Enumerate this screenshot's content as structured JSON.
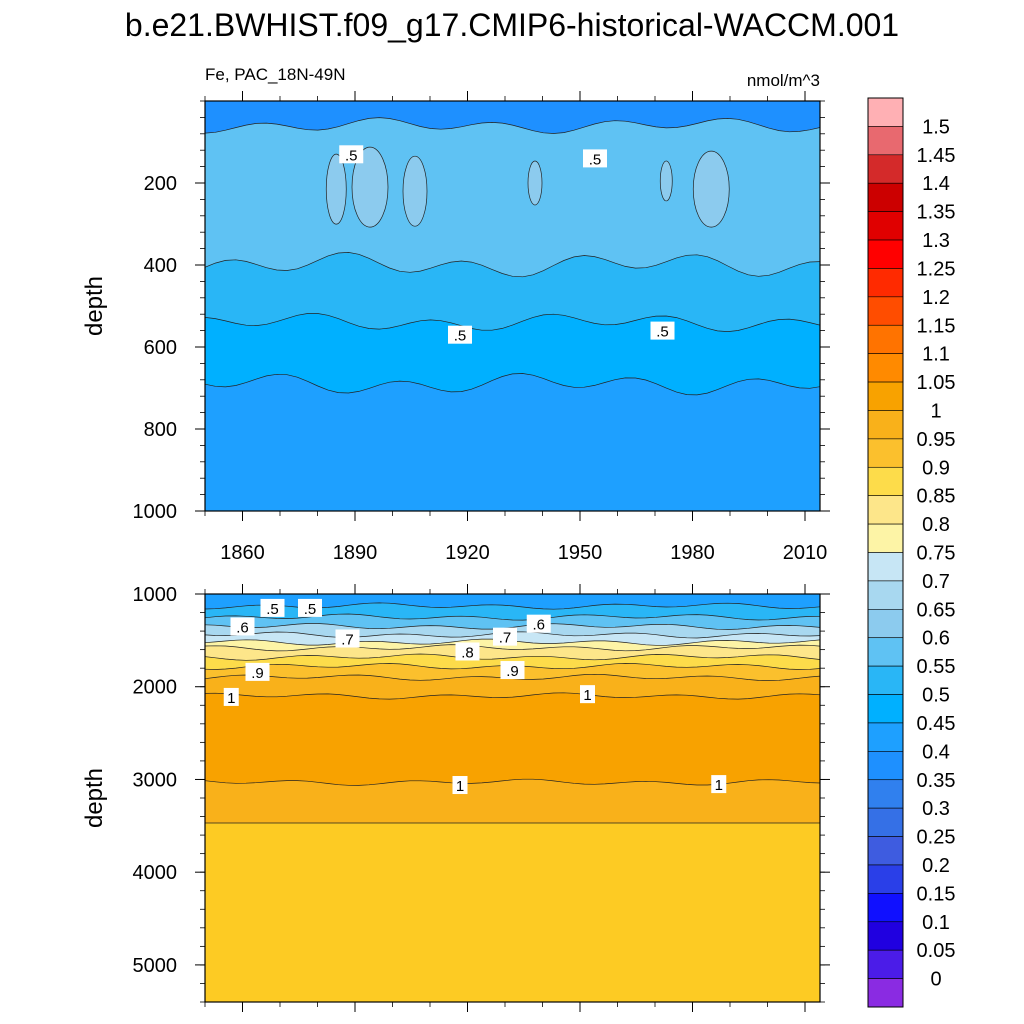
{
  "title": "b.e21.BWHIST.f09_g17.CMIP6-historical-WACCM.001",
  "subtitle_left": "Fe, PAC_18N-49N",
  "units": "nmol/m^3",
  "chart_data": [
    {
      "type": "heatmap",
      "panel": "upper",
      "ylabel": "depth",
      "y_reversed": true,
      "ylim": [
        0,
        1000
      ],
      "yticks": [
        "200",
        "400",
        "600",
        "800",
        "1000"
      ],
      "ytick_values": [
        200,
        400,
        600,
        800,
        1000
      ],
      "xlim": [
        1850,
        2014
      ],
      "xticks": [
        "1860",
        "1890",
        "1920",
        "1950",
        "1980",
        "2010"
      ],
      "xtick_values": [
        1860,
        1890,
        1920,
        1950,
        1980,
        2010
      ],
      "bands": [
        {
          "from": 0,
          "to": 60,
          "color": "#1e90ff"
        },
        {
          "from": 60,
          "to": 400,
          "color": "#5fc2f3"
        },
        {
          "from": 400,
          "to": 540,
          "color": "#29b6f6"
        },
        {
          "from": 540,
          "to": 690,
          "color": "#00b0ff"
        },
        {
          "from": 690,
          "to": 1000,
          "color": "#1ea0ff"
        }
      ],
      "contour_labels": [
        {
          "text": ".5",
          "year": 1889,
          "depth": 130
        },
        {
          "text": ".5",
          "year": 1954,
          "depth": 140
        },
        {
          "text": ".5",
          "year": 1918,
          "depth": 570
        },
        {
          "text": ".5",
          "year": 1972,
          "depth": 560
        }
      ]
    },
    {
      "type": "heatmap",
      "panel": "lower",
      "ylabel": "depth",
      "y_reversed": true,
      "ylim": [
        1000,
        5400
      ],
      "yticks": [
        "1000",
        "2000",
        "3000",
        "4000",
        "5000"
      ],
      "ytick_values": [
        1000,
        2000,
        3000,
        4000,
        5000
      ],
      "xlim": [
        1850,
        2014
      ],
      "bands": [
        {
          "from": 1000,
          "to": 1130,
          "color": "#1ea0ff"
        },
        {
          "from": 1130,
          "to": 1250,
          "color": "#29b6f6"
        },
        {
          "from": 1250,
          "to": 1350,
          "color": "#5fc2f3"
        },
        {
          "from": 1350,
          "to": 1440,
          "color": "#a8d8f0"
        },
        {
          "from": 1440,
          "to": 1520,
          "color": "#c7e6f5"
        },
        {
          "from": 1520,
          "to": 1580,
          "color": "#fdf4a6"
        },
        {
          "from": 1580,
          "to": 1680,
          "color": "#fde68a"
        },
        {
          "from": 1680,
          "to": 1780,
          "color": "#fddc4a"
        },
        {
          "from": 1780,
          "to": 1900,
          "color": "#fbc02d"
        },
        {
          "from": 1900,
          "to": 2100,
          "color": "#f9b11a"
        },
        {
          "from": 2100,
          "to": 3030,
          "color": "#f8a200"
        },
        {
          "from": 3030,
          "to": 3470,
          "color": "#f9b11a"
        },
        {
          "from": 3470,
          "to": 5400,
          "color": "#fdcb23"
        }
      ],
      "contour_labels": [
        {
          "text": ".5",
          "year": 1868,
          "depth": 1150
        },
        {
          "text": ".5",
          "year": 1878,
          "depth": 1150
        },
        {
          "text": ".6",
          "year": 1860,
          "depth": 1350
        },
        {
          "text": ".7",
          "year": 1888,
          "depth": 1480
        },
        {
          "text": ".6",
          "year": 1939,
          "depth": 1320
        },
        {
          "text": ".7",
          "year": 1930,
          "depth": 1460
        },
        {
          "text": ".8",
          "year": 1920,
          "depth": 1620
        },
        {
          "text": ".9",
          "year": 1864,
          "depth": 1840
        },
        {
          "text": ".9",
          "year": 1932,
          "depth": 1820
        },
        {
          "text": "1",
          "year": 1857,
          "depth": 2110
        },
        {
          "text": "1",
          "year": 1952,
          "depth": 2080
        },
        {
          "text": "1",
          "year": 1918,
          "depth": 3060
        },
        {
          "text": "1",
          "year": 1987,
          "depth": 3050
        }
      ]
    }
  ],
  "colorbar": {
    "labels": [
      "1.5",
      "1.45",
      "1.4",
      "1.35",
      "1.3",
      "1.25",
      "1.2",
      "1.15",
      "1.1",
      "1.05",
      "1",
      "0.95",
      "0.9",
      "0.85",
      "0.8",
      "0.75",
      "0.7",
      "0.65",
      "0.6",
      "0.55",
      "0.5",
      "0.45",
      "0.4",
      "0.35",
      "0.3",
      "0.25",
      "0.2",
      "0.15",
      "0.1",
      "0.05",
      "0"
    ],
    "colors": [
      "#ffb0b4",
      "#e8696f",
      "#d42a2a",
      "#cc0000",
      "#e00000",
      "#ff0000",
      "#ff2a00",
      "#ff4d00",
      "#ff7300",
      "#ff8a00",
      "#f8a200",
      "#f9b11a",
      "#fbc02d",
      "#fddc4a",
      "#fde68a",
      "#fdf4a6",
      "#c7e6f5",
      "#a8d8f0",
      "#8ccbee",
      "#5fc2f3",
      "#29b6f6",
      "#00b0ff",
      "#1ea0ff",
      "#1e90ff",
      "#3080ee",
      "#3570e6",
      "#3e5ce0",
      "#2a3fe8",
      "#1010ff",
      "#2000e0",
      "#4b1ce8",
      "#8a2be2"
    ]
  }
}
